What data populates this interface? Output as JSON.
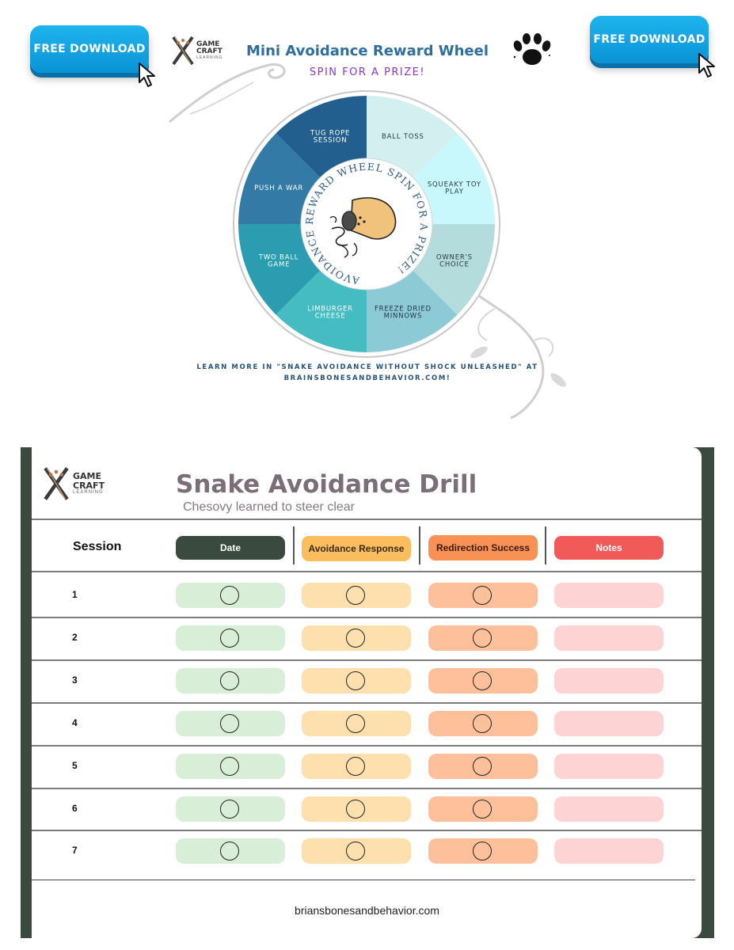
{
  "download_buttons": {
    "label": "FREE DOWNLOAD"
  },
  "logo": {
    "line1": "GAME",
    "line2": "CRAFT",
    "line3": "LEARNING"
  },
  "wheel": {
    "title": "Mini Avoidance Reward Wheel",
    "subtitle": "SPIN FOR A PRIZE!",
    "ring_text": "AVOIDANCE REWARD WHEEL SPIN FOR A PRIZE!",
    "segments": [
      {
        "label": [
          "BALL TOSS"
        ],
        "color": "#d3eff0"
      },
      {
        "label": [
          "SQUEAKY TOY",
          "PLAY"
        ],
        "color": "#c8f8fb"
      },
      {
        "label": [
          "OWNER'S",
          "CHOICE"
        ],
        "color": "#b4dcdc"
      },
      {
        "label": [
          "FREEZE DRIED",
          "MINNOWS"
        ],
        "color": "#8ccbd6"
      },
      {
        "label": [
          "LIMBURGER",
          "CHEESE"
        ],
        "color": "#44bcc2"
      },
      {
        "label": [
          "TWO BALL",
          "GAME"
        ],
        "color": "#2c9cb0"
      },
      {
        "label": [
          "PUSH A WAR"
        ],
        "color": "#337aa6"
      },
      {
        "label": [
          "TUG ROPE",
          "SESSION"
        ],
        "color": "#235f8e"
      }
    ],
    "learn_more_line1": "LEARN MORE IN \"SNAKE AVOIDANCE WITHOUT SHOCK UNLEASHED\" AT",
    "learn_more_line2": "BRAINSBONESANDBEHAVIOR.COM!"
  },
  "drill": {
    "title": "Snake Avoidance Drill",
    "subtitle": "Chesovy learned to steer clear",
    "headers": {
      "session": "Session",
      "date": "Date",
      "avoidance": "Avoidance Response",
      "redirection": "Redirection Success",
      "notes": "Notes"
    },
    "rows": [
      "1",
      "2",
      "3",
      "4",
      "5",
      "6",
      "7"
    ],
    "footer_url": "briansbonesandbehavior.com"
  },
  "colors": {
    "dark_green": "#3a4a3e",
    "avoidance": "#fbbd5e",
    "redirection": "#f79155",
    "notes": "#f25a5a",
    "button_blue": "#0a93d6"
  }
}
